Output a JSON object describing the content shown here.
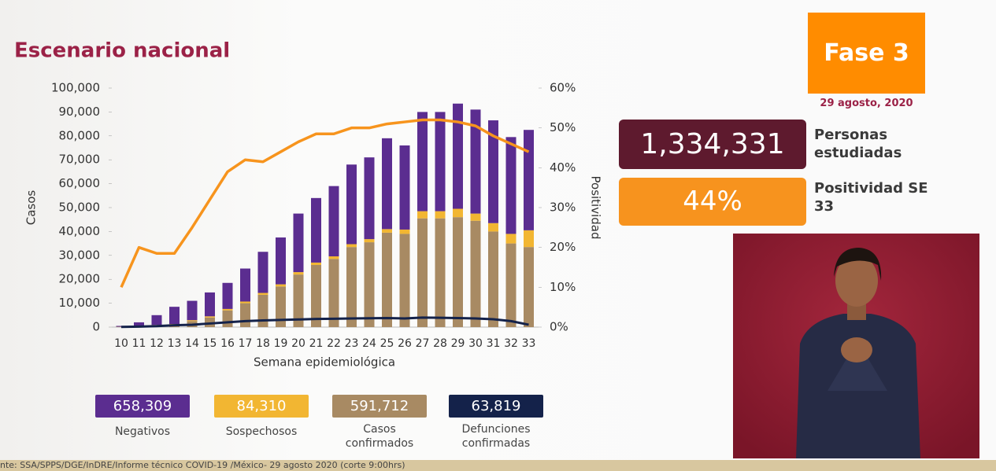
{
  "chart_data": {
    "type": "bar",
    "title": "Escenario nacional",
    "xlabel": "Semana epidemiológica",
    "ylabel": "Casos",
    "y2label": "Positividad",
    "categories": [
      "10",
      "11",
      "12",
      "13",
      "14",
      "15",
      "16",
      "17",
      "18",
      "19",
      "20",
      "21",
      "22",
      "23",
      "24",
      "25",
      "26",
      "27",
      "28",
      "29",
      "30",
      "31",
      "32",
      "33"
    ],
    "series": [
      {
        "name": "Negativos",
        "total": "658,309",
        "type": "bar",
        "color": "#5b2d90",
        "values": [
          350,
          1600,
          4100,
          7200,
          8100,
          10000,
          10900,
          13800,
          17200,
          19600,
          24500,
          27000,
          29400,
          33300,
          34200,
          38000,
          35200,
          41500,
          41500,
          44000,
          43500,
          43000,
          40500,
          42000
        ]
      },
      {
        "name": "Sospechosos",
        "total": "84,310",
        "type": "bar",
        "color": "#f2b632",
        "values": [
          50,
          100,
          200,
          300,
          400,
          500,
          600,
          700,
          800,
          900,
          1000,
          1000,
          1100,
          1200,
          1300,
          1500,
          1800,
          3000,
          3000,
          3500,
          3000,
          3500,
          4000,
          7000
        ]
      },
      {
        "name": "Casos confirmados",
        "total": "591,712",
        "type": "bar",
        "color": "#a88a63",
        "values": [
          100,
          300,
          700,
          1000,
          2500,
          4000,
          7000,
          10000,
          13500,
          17000,
          22000,
          26000,
          28500,
          33500,
          35500,
          39500,
          39000,
          45500,
          45500,
          46000,
          44500,
          40000,
          35000,
          33500
        ]
      },
      {
        "name": "Defunciones confirmadas",
        "total": "63,819",
        "type": "line",
        "color": "#14224a",
        "values": [
          100,
          200,
          400,
          800,
          1000,
          1500,
          2000,
          2500,
          2800,
          3000,
          3200,
          3400,
          3500,
          3600,
          3700,
          3800,
          3600,
          4000,
          3900,
          3800,
          3600,
          3300,
          2500,
          1000
        ]
      },
      {
        "type": "line",
        "axis": "y2",
        "color": "#f7941d",
        "values": [
          10,
          20,
          18.5,
          18.5,
          25,
          32,
          39,
          42,
          41.5,
          44,
          46.5,
          48.5,
          48.5,
          50,
          50,
          51,
          51.5,
          52,
          52,
          51.5,
          50.5,
          48,
          46,
          44
        ]
      }
    ],
    "ylim": [
      0,
      100000
    ],
    "yticks": [
      0,
      {
        "value": 10000,
        "label": "10,000"
      },
      {
        "value": 20000,
        "label": "20,000"
      },
      {
        "value": 30000,
        "label": "30,000"
      },
      {
        "value": 40000,
        "label": "40,000"
      },
      {
        "value": 50000,
        "label": "50,000"
      },
      {
        "value": 60000,
        "label": "60,000"
      },
      {
        "value": 70000,
        "label": "70,000"
      },
      {
        "value": 80000,
        "label": "80,000"
      },
      {
        "value": 90000,
        "label": "90,000"
      },
      {
        "value": 100000,
        "label": "100,000"
      }
    ],
    "y2lim": [
      0,
      60
    ],
    "y2ticks": [
      {
        "value": 0,
        "label": "0%"
      },
      {
        "value": 10,
        "label": "10%"
      },
      {
        "value": 20,
        "label": "20%"
      },
      {
        "value": 30,
        "label": "30%"
      },
      {
        "value": 40,
        "label": "40%"
      },
      {
        "value": 50,
        "label": "50%"
      },
      {
        "value": 60,
        "label": "60%"
      }
    ]
  },
  "header": {
    "phase": "Fase 3",
    "date": "29 agosto, 2020"
  },
  "stats": {
    "studied": "1,334,331",
    "studied_label": "Personas estudiadas",
    "positivity": "44%",
    "positivity_label": "Positividad SE 33"
  },
  "footer": "nte: SSA/SPPS/DGE/InDRE/Informe técnico COVID-19 /México- 29 agosto 2020 (corte 9:00hrs)"
}
